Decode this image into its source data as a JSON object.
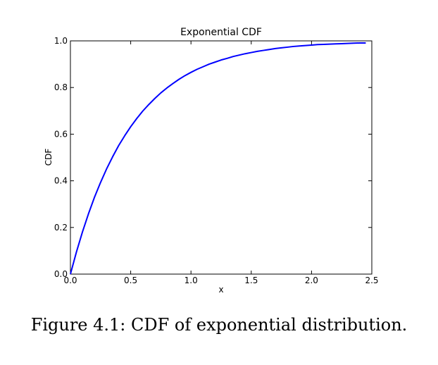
{
  "caption": "Figure 4.1: CDF of exponential distribution.",
  "chart_data": {
    "type": "line",
    "title": "Exponential CDF",
    "xlabel": "x",
    "ylabel": "CDF",
    "xlim": [
      0,
      2.5
    ],
    "ylim": [
      0,
      1.0
    ],
    "xticks": [
      "0.0",
      "0.5",
      "1.0",
      "1.5",
      "2.0",
      "2.5"
    ],
    "yticks": [
      "0.0",
      "0.2",
      "0.4",
      "0.6",
      "0.8",
      "1.0"
    ],
    "grid": false,
    "series": [
      {
        "color": "#0000ff",
        "x": [
          0,
          0.05,
          0.1,
          0.15,
          0.2,
          0.25,
          0.3,
          0.35,
          0.4,
          0.45,
          0.5,
          0.55,
          0.6,
          0.65,
          0.7,
          0.75,
          0.8,
          0.85,
          0.9,
          0.95,
          1.0,
          1.05,
          1.1,
          1.15,
          1.2,
          1.25,
          1.3,
          1.35,
          1.4,
          1.45,
          1.5,
          1.55,
          1.6,
          1.65,
          1.7,
          1.75,
          1.8,
          1.85,
          1.9,
          1.95,
          2.0,
          2.05,
          2.1,
          2.15,
          2.2,
          2.25,
          2.3,
          2.35,
          2.4,
          2.45
        ],
        "y": [
          0.0,
          0.095,
          0.181,
          0.259,
          0.33,
          0.393,
          0.451,
          0.503,
          0.551,
          0.593,
          0.632,
          0.667,
          0.699,
          0.727,
          0.753,
          0.777,
          0.798,
          0.817,
          0.835,
          0.851,
          0.865,
          0.878,
          0.889,
          0.9,
          0.909,
          0.918,
          0.925,
          0.933,
          0.939,
          0.945,
          0.95,
          0.955,
          0.959,
          0.963,
          0.967,
          0.97,
          0.973,
          0.976,
          0.978,
          0.98,
          0.982,
          0.984,
          0.985,
          0.986,
          0.987,
          0.988,
          0.989,
          0.99,
          0.991,
          0.991
        ]
      }
    ]
  }
}
